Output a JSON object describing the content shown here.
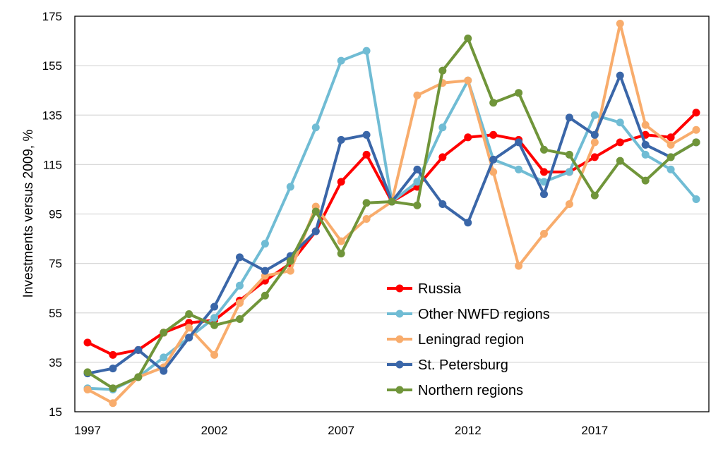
{
  "chart_data": {
    "type": "line",
    "title": "",
    "xlabel": "",
    "ylabel": "Investments versus 2009, %",
    "ylim": [
      15,
      175
    ],
    "xlim": [
      1997,
      2021
    ],
    "yticks": [
      15,
      35,
      55,
      75,
      95,
      115,
      135,
      155,
      175
    ],
    "xticks": [
      1997,
      2002,
      2007,
      2012,
      2017
    ],
    "grid": "horizontal",
    "legend_position": "center-right",
    "x": [
      1997,
      1998,
      1999,
      2000,
      2001,
      2002,
      2003,
      2004,
      2005,
      2006,
      2007,
      2008,
      2009,
      2010,
      2011,
      2012,
      2013,
      2014,
      2015,
      2016,
      2017,
      2018,
      2019,
      2020,
      2021
    ],
    "series": [
      {
        "name": "Russia",
        "color": "#ff0000",
        "values": [
          43,
          38,
          40,
          47,
          51,
          52,
          60,
          68,
          75,
          88,
          108,
          119,
          100,
          106,
          118,
          126,
          127,
          125,
          112,
          112,
          118,
          124,
          127,
          126,
          136
        ]
      },
      {
        "name": "Other NWFD regions",
        "color": "#70bcd4",
        "values": [
          24.5,
          24,
          29,
          37,
          45,
          53,
          66,
          83,
          106,
          130,
          157,
          161,
          100,
          108,
          130,
          149,
          117,
          113,
          108,
          112,
          135,
          132,
          119,
          113,
          101
        ]
      },
      {
        "name": "Leningrad region",
        "color": "#f8ac6c",
        "values": [
          24,
          18.5,
          29,
          33,
          49,
          38,
          59,
          70,
          72,
          98,
          84,
          93,
          100,
          143,
          148,
          149,
          112,
          74,
          87,
          99,
          124,
          172,
          131,
          123,
          129
        ]
      },
      {
        "name": "St. Petersburg",
        "color": "#3a66a8",
        "values": [
          30.5,
          32.5,
          40,
          31.5,
          45,
          57.5,
          77.5,
          72,
          78,
          88,
          125,
          127,
          100,
          113,
          99,
          91.5,
          117,
          124,
          103,
          134,
          127,
          151,
          123,
          118,
          124
        ]
      },
      {
        "name": "Northern regions",
        "color": "#70953a",
        "values": [
          31,
          24.5,
          29,
          47,
          54.5,
          50,
          52.5,
          62,
          76,
          96,
          79,
          99.5,
          100,
          98.5,
          153,
          166,
          140,
          144,
          121,
          119,
          102.5,
          116.5,
          108.5,
          118,
          124
        ]
      }
    ]
  }
}
